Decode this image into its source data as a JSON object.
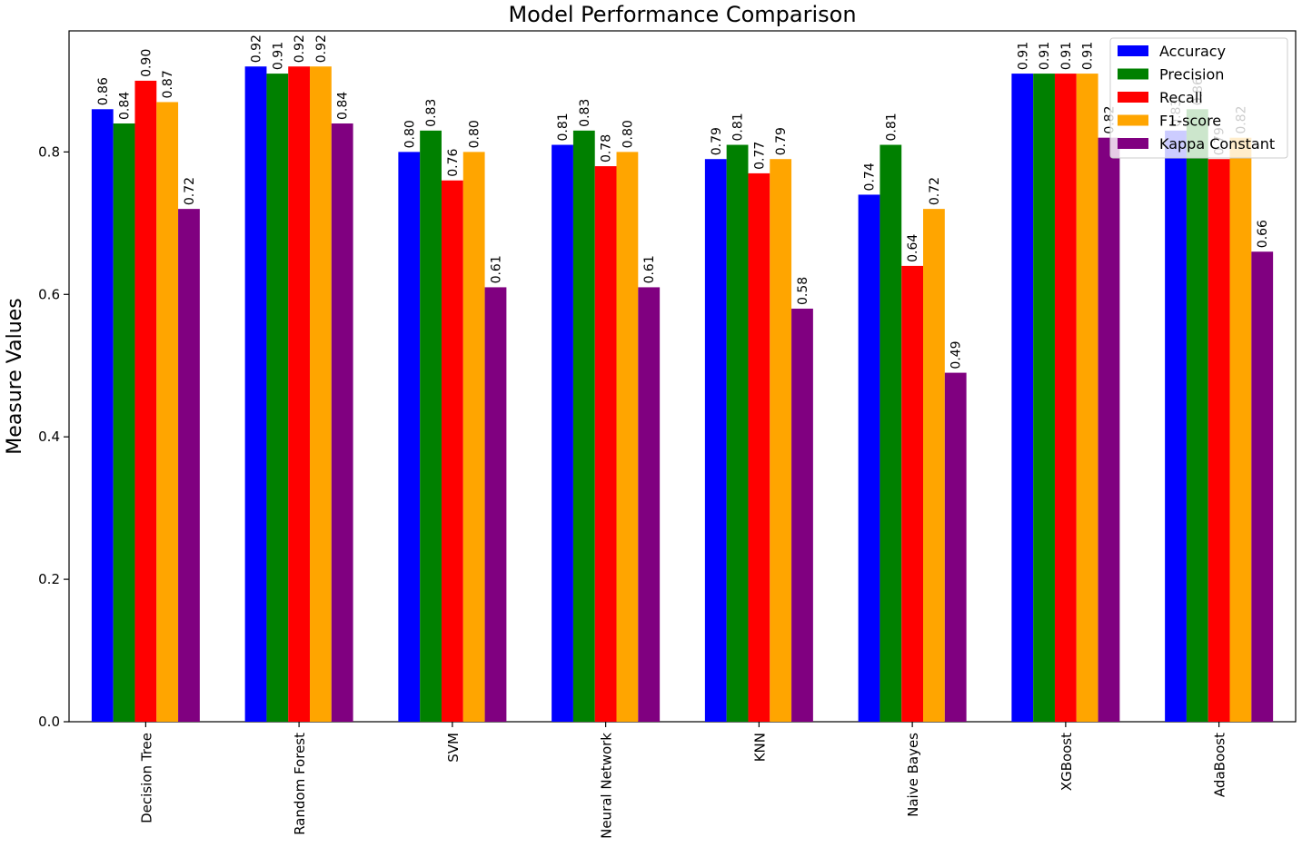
{
  "chart_data": {
    "type": "bar",
    "title": "Model Performance Comparison",
    "xlabel": "",
    "ylabel": "Measure Values",
    "ylim": [
      0,
      0.97
    ],
    "yticks": [
      "0.0",
      "0.2",
      "0.4",
      "0.6",
      "0.8"
    ],
    "ytick_values": [
      0.0,
      0.2,
      0.4,
      0.6,
      0.8
    ],
    "grid": false,
    "legend_position": "top-right",
    "categories": [
      "Decision Tree",
      "Random Forest",
      "SVM",
      "Neural Network",
      "KNN",
      "Naive Bayes",
      "XGBoost",
      "AdaBoost"
    ],
    "series": [
      {
        "name": "Accuracy",
        "color": "#0000ff",
        "values": [
          0.86,
          0.92,
          0.8,
          0.81,
          0.79,
          0.74,
          0.91,
          0.83
        ],
        "labels": [
          "0.86",
          "0.92",
          "0.80",
          "0.81",
          "0.79",
          "0.74",
          "0.91",
          "0.83"
        ]
      },
      {
        "name": "Precision",
        "color": "#008000",
        "values": [
          0.84,
          0.91,
          0.83,
          0.83,
          0.81,
          0.81,
          0.91,
          0.86
        ],
        "labels": [
          "0.84",
          "0.91",
          "0.83",
          "0.83",
          "0.81",
          "0.81",
          "0.91",
          "0.86"
        ]
      },
      {
        "name": "Recall",
        "color": "#ff0000",
        "values": [
          0.9,
          0.92,
          0.76,
          0.78,
          0.77,
          0.64,
          0.91,
          0.79
        ],
        "labels": [
          "0.90",
          "0.92",
          "0.76",
          "0.78",
          "0.77",
          "0.64",
          "0.91",
          "0.79"
        ]
      },
      {
        "name": "F1-score",
        "color": "#ffa500",
        "values": [
          0.87,
          0.92,
          0.8,
          0.8,
          0.79,
          0.72,
          0.91,
          0.82
        ],
        "labels": [
          "0.87",
          "0.92",
          "0.80",
          "0.80",
          "0.79",
          "0.72",
          "0.91",
          "0.82"
        ]
      },
      {
        "name": "Kappa Constant",
        "color": "#800080",
        "values": [
          0.72,
          0.84,
          0.61,
          0.61,
          0.58,
          0.49,
          0.82,
          0.66
        ],
        "labels": [
          "0.72",
          "0.84",
          "0.61",
          "0.61",
          "0.58",
          "0.49",
          "0.82",
          "0.66"
        ]
      }
    ]
  }
}
